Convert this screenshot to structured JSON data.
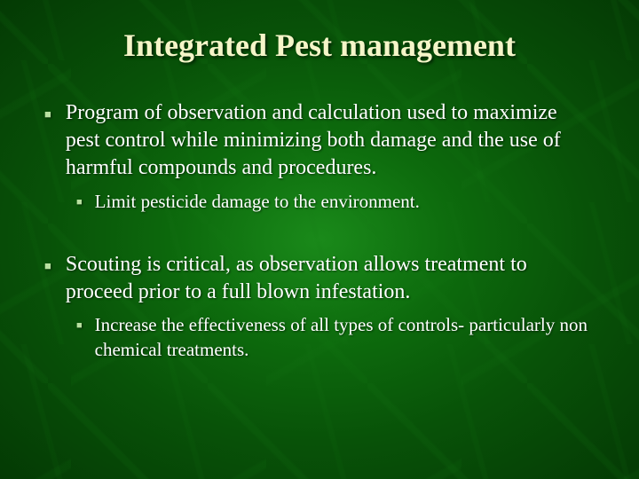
{
  "slide": {
    "title": "Integrated Pest management",
    "bullets": [
      {
        "text": "Program of observation and calculation used to maximize pest control while minimizing both damage and the use of harmful compounds and procedures.",
        "sub": [
          {
            "text": "Limit pesticide damage to the environment."
          }
        ]
      },
      {
        "text": "Scouting is critical, as observation allows treatment to proceed prior to a full blown infestation.",
        "sub": [
          {
            "text": "Increase the effectiveness of all types of controls- particularly non chemical treatments."
          }
        ]
      }
    ]
  },
  "style": {
    "background_gradient": [
      "#1a8a1a",
      "#0d6b0d",
      "#085208",
      "#043a04"
    ],
    "title_color": "#f5f5c8",
    "title_fontsize": 36,
    "body_color": "#ffffff",
    "bullet_color": "#b8e0a0",
    "level1_fontsize": 24,
    "level2_fontsize": 21,
    "font_family": "Times New Roman"
  }
}
